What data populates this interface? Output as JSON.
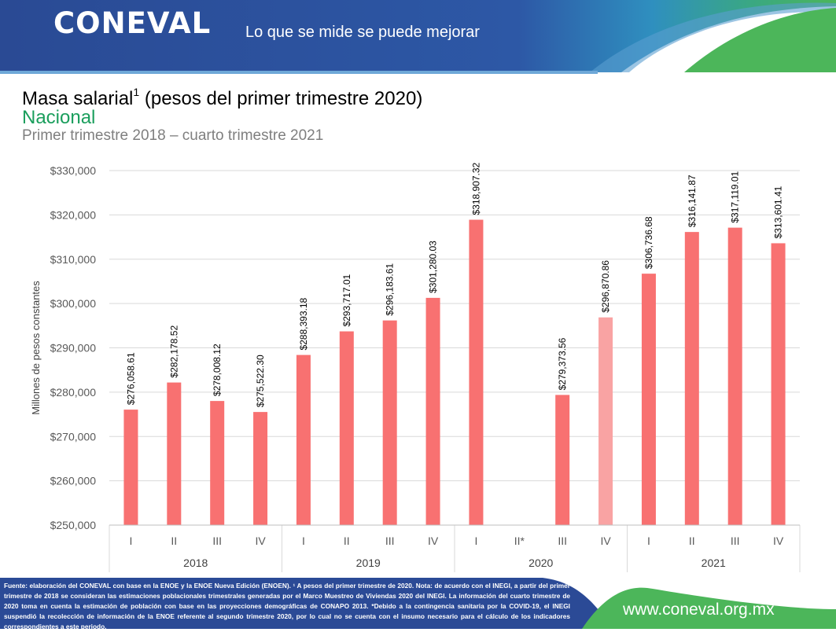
{
  "header": {
    "logo": "CONEVAL",
    "tagline": "Lo que se mide se puede mejorar"
  },
  "chart_data": {
    "type": "bar",
    "title": "Masa salarial",
    "title_sup": "1",
    "title_rest": " (pesos del primer trimestre 2020)",
    "subtitle": "Nacional",
    "period": "Primer trimestre 2018 – cuarto trimestre 2021",
    "ylabel": "Millones de pesos constantes",
    "ylim": [
      250000,
      330000
    ],
    "ytick_labels": [
      "$250,000",
      "$260,000",
      "$270,000",
      "$280,000",
      "$290,000",
      "$300,000",
      "$310,000",
      "$320,000",
      "$330,000"
    ],
    "grid": true,
    "legend": "none",
    "colors": {
      "bar": "#f87171",
      "bar_highlight": "#f9a3a3",
      "grid": "#d9d9d9"
    },
    "groups": [
      {
        "year": "2018",
        "bars": [
          {
            "quarter": "I",
            "value": 276058.61,
            "label": "$276,058.61"
          },
          {
            "quarter": "II",
            "value": 282178.52,
            "label": "$282,178.52"
          },
          {
            "quarter": "III",
            "value": 278008.12,
            "label": "$278,008.12"
          },
          {
            "quarter": "IV",
            "value": 275522.3,
            "label": "$275,522.30"
          }
        ]
      },
      {
        "year": "2019",
        "bars": [
          {
            "quarter": "I",
            "value": 288393.18,
            "label": "$288,393.18"
          },
          {
            "quarter": "II",
            "value": 293717.01,
            "label": "$293,717.01"
          },
          {
            "quarter": "III",
            "value": 296183.61,
            "label": "$296,183.61"
          },
          {
            "quarter": "IV",
            "value": 301280.03,
            "label": "$301,280.03"
          }
        ]
      },
      {
        "year": "2020",
        "bars": [
          {
            "quarter": "I",
            "value": 318907.32,
            "label": "$318,907.32"
          },
          {
            "quarter": "II*",
            "value": null,
            "label": ""
          },
          {
            "quarter": "III",
            "value": 279373.56,
            "label": "$279,373.56"
          },
          {
            "quarter": "IV",
            "value": 296870.86,
            "label": "$296,870.86",
            "highlight": true
          }
        ]
      },
      {
        "year": "2021",
        "bars": [
          {
            "quarter": "I",
            "value": 306736.68,
            "label": "$306,736.68"
          },
          {
            "quarter": "II",
            "value": 316141.87,
            "label": "$316,141.87"
          },
          {
            "quarter": "III",
            "value": 317119.01,
            "label": "$317,119.01"
          },
          {
            "quarter": "IV",
            "value": 313601.41,
            "label": "$313,601.41"
          }
        ]
      }
    ]
  },
  "footer": {
    "note": "Fuente: elaboración del CONEVAL con base en la ENOE y la ENOE Nueva Edición (ENOEN). ¹ A pesos del primer trimestre de 2020. Nota: de acuerdo con el INEGI, a partir del primer trimestre de 2018 se consideran las estimaciones poblacionales trimestrales generadas por el Marco Muestreo de Viviendas 2020 del INEGI. La información del cuarto trimestre de 2020 toma en cuenta la estimación de población con base en las proyecciones demográficas de CONAPO 2013. *Debido a la contingencia sanitaria por la COVID-19, el INEGI suspendió la recolección de información de la ENOE referente al segundo trimestre 2020, por lo cual no se cuenta con el insumo necesario para el cálculo de los indicadores correspondientes a este periodo.",
    "website": "www.coneval.org.mx"
  }
}
